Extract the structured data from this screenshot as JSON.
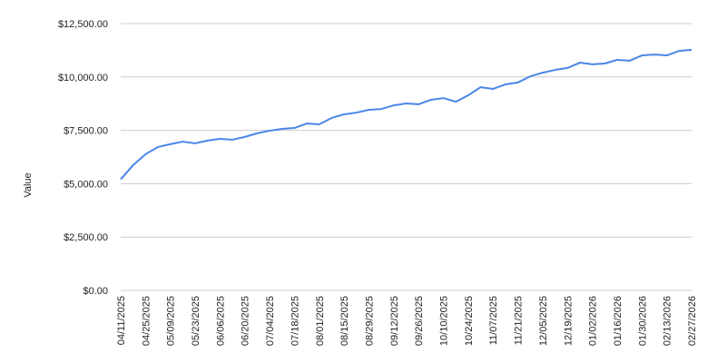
{
  "chart_data": {
    "type": "line",
    "y_label": "Value",
    "categories": [
      "04/11/2025",
      null,
      "04/25/2025",
      null,
      "05/09/2025",
      null,
      "05/23/2025",
      null,
      "06/06/2025",
      null,
      "06/20/2025",
      null,
      "07/04/2025",
      null,
      "07/18/2025",
      null,
      "08/01/2025",
      null,
      "08/15/2025",
      null,
      "08/29/2025",
      null,
      "09/12/2025",
      null,
      "09/26/2025",
      null,
      "10/10/2025",
      null,
      "10/24/2025",
      null,
      "11/07/2025",
      null,
      "11/21/2025",
      null,
      "12/05/2025",
      null,
      "12/19/2025",
      null,
      "01/02/2026",
      null,
      "01/16/2026",
      null,
      "01/30/2026",
      null,
      "02/13/2026",
      null,
      "02/27/2026"
    ],
    "series": [
      {
        "name": "Value",
        "color": "#4a86e8",
        "values": [
          5200,
          5870,
          6380,
          6720,
          6850,
          6970,
          6890,
          7020,
          7100,
          7060,
          7190,
          7360,
          7480,
          7570,
          7610,
          7820,
          7780,
          8080,
          8250,
          8330,
          8460,
          8500,
          8670,
          8760,
          8720,
          8930,
          9010,
          8840,
          9140,
          9520,
          9440,
          9650,
          9740,
          10030,
          10200,
          10330,
          10420,
          10670,
          10590,
          10630,
          10800,
          10760,
          11010,
          11050,
          11010,
          11220,
          11270
        ]
      }
    ],
    "ylim": [
      0,
      12500
    ],
    "yticks": [
      {
        "value": 0,
        "label": "$0.00"
      },
      {
        "value": 2500,
        "label": "$2,500.00"
      },
      {
        "value": 5000,
        "label": "$5,000.00"
      },
      {
        "value": 7500,
        "label": "$7,500.00"
      },
      {
        "value": 10000,
        "label": "$10,000.00"
      },
      {
        "value": 12500,
        "label": "$12,500.00"
      }
    ],
    "grid": true
  }
}
